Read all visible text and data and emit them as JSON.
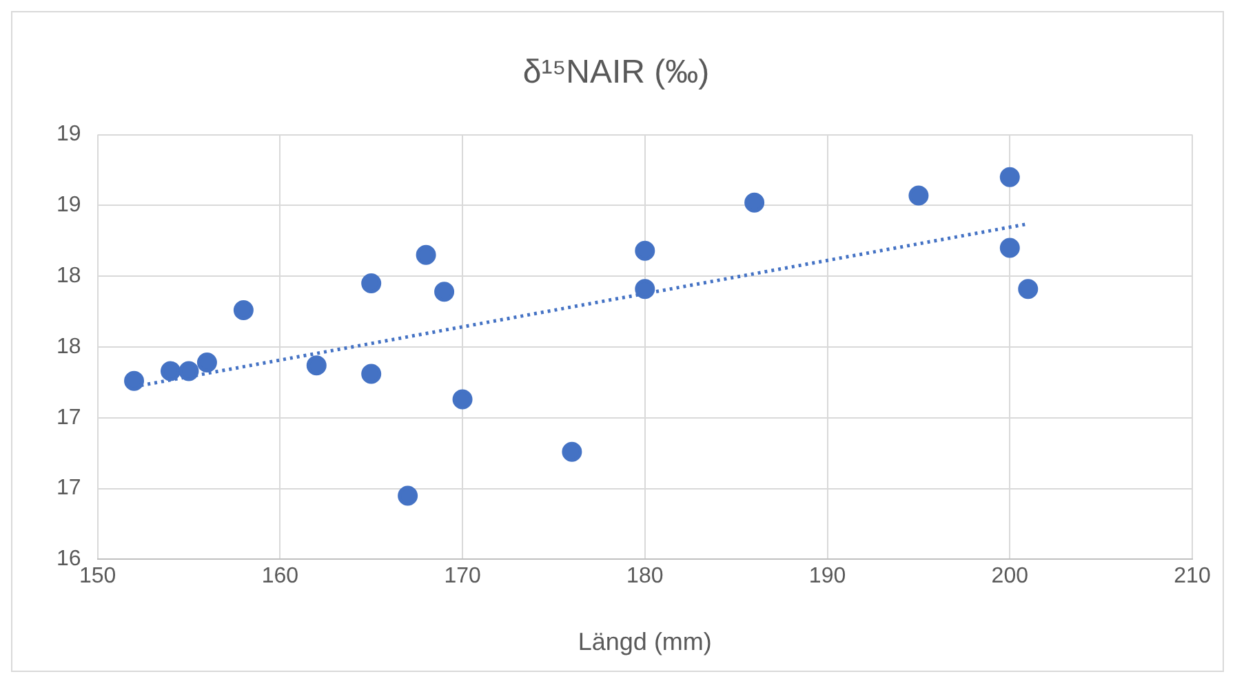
{
  "chart_data": {
    "type": "scatter",
    "title": "δ¹⁵NAIR (‰)",
    "xlabel": "Längd (mm)",
    "xlim": [
      150,
      210
    ],
    "xticks": [
      150,
      160,
      170,
      180,
      190,
      200,
      210
    ],
    "ylim": [
      16,
      19
    ],
    "yticks": [
      16,
      {
        "value": 16.5,
        "label": "17"
      },
      17,
      {
        "value": 17.5,
        "label": "18"
      },
      18,
      {
        "value": 18.5,
        "label": "19"
      },
      19
    ],
    "grid": true,
    "legend": false,
    "marker": "circle",
    "series": [
      {
        "type": "scatter",
        "color": "#4472c4",
        "x": [
          152,
          154,
          155,
          156,
          158,
          162,
          165,
          165,
          167,
          168,
          169,
          170,
          176,
          180,
          180,
          186,
          195,
          200,
          200,
          201
        ],
        "values": [
          17.26,
          17.33,
          17.33,
          17.39,
          17.76,
          17.37,
          17.95,
          17.31,
          16.45,
          18.15,
          17.89,
          17.13,
          16.76,
          18.18,
          17.91,
          18.52,
          18.57,
          18.7,
          18.2,
          17.91
        ]
      },
      {
        "type": "line",
        "color": "#4472c4",
        "line_style": "dotted",
        "marker": "none",
        "x": [
          152,
          201
        ],
        "values": [
          17.22,
          18.37
        ]
      }
    ]
  }
}
